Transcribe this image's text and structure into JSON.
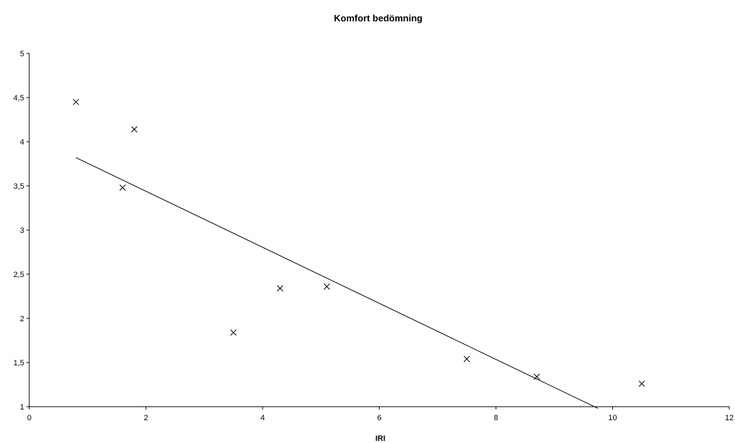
{
  "chart_data": {
    "type": "scatter",
    "title": "Komfort bedömning",
    "xlabel": "IRI",
    "ylabel": "",
    "xlim": [
      0,
      12
    ],
    "ylim": [
      1,
      5
    ],
    "x_ticks": [
      0,
      2,
      4,
      6,
      8,
      10,
      12
    ],
    "y_ticks": [
      1,
      1.5,
      2,
      2.5,
      3,
      3.5,
      4,
      4.5,
      5
    ],
    "x_tick_labels": [
      "0",
      "2",
      "4",
      "6",
      "8",
      "10",
      "12"
    ],
    "y_tick_labels": [
      "1",
      "1,5",
      "2",
      "2,5",
      "3",
      "3,5",
      "4",
      "4,5",
      "5"
    ],
    "grid": false,
    "legend": "none",
    "marker": "x",
    "series": [
      {
        "points": [
          {
            "x": 0.8,
            "y": 4.45
          },
          {
            "x": 1.6,
            "y": 3.48
          },
          {
            "x": 1.8,
            "y": 4.14
          },
          {
            "x": 3.5,
            "y": 1.84
          },
          {
            "x": 4.3,
            "y": 2.34
          },
          {
            "x": 5.1,
            "y": 2.36
          },
          {
            "x": 7.5,
            "y": 1.54
          },
          {
            "x": 8.7,
            "y": 1.34
          },
          {
            "x": 10.5,
            "y": 1.26
          }
        ]
      }
    ],
    "trendline": {
      "type": "linear",
      "from": {
        "x": 0.8,
        "y": 3.82
      },
      "to": {
        "x": 9.75,
        "y": 0.98
      }
    }
  }
}
